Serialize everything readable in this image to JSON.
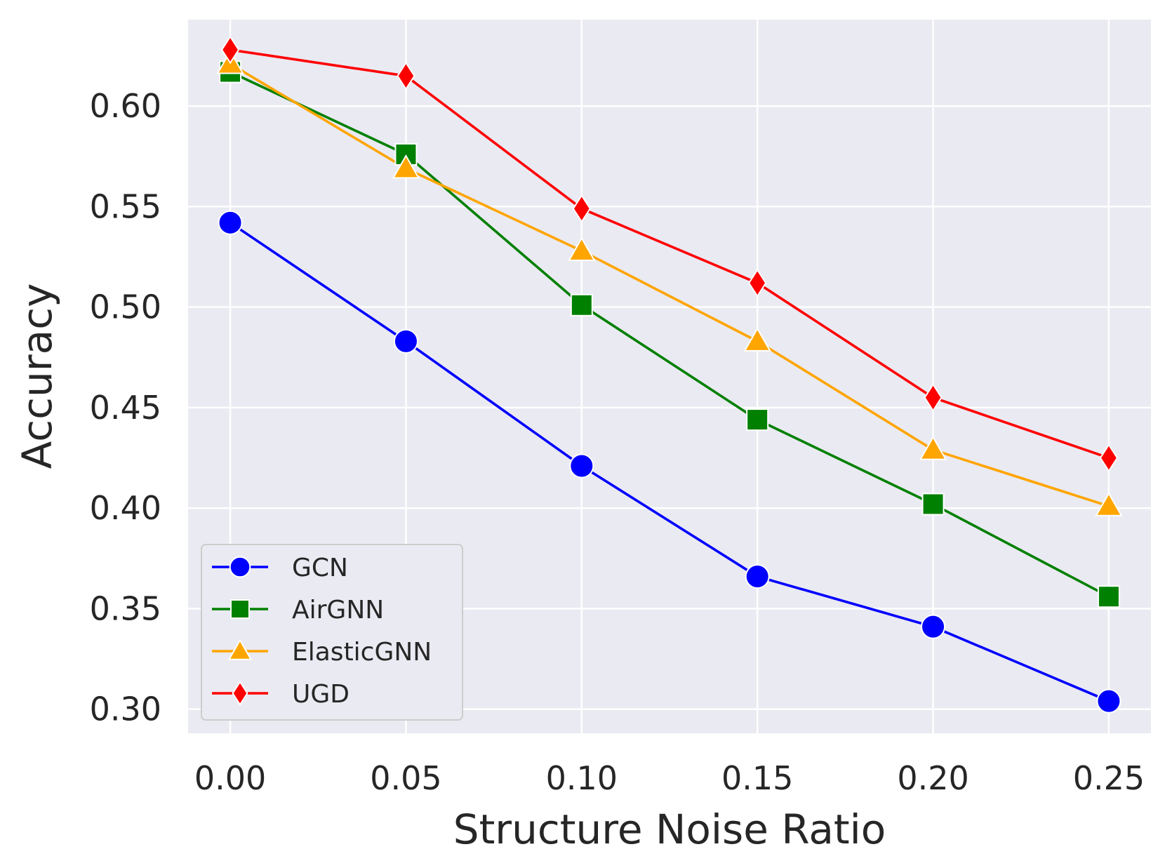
{
  "chart_data": {
    "type": "line",
    "title": "",
    "xlabel": "Structure Noise Ratio",
    "ylabel": "Accuracy",
    "x": [
      0.0,
      0.05,
      0.1,
      0.15,
      0.2,
      0.25
    ],
    "x_tick_labels": [
      "0.00",
      "0.05",
      "0.10",
      "0.15",
      "0.20",
      "0.25"
    ],
    "y_ticks": [
      0.3,
      0.35,
      0.4,
      0.45,
      0.5,
      0.55,
      0.6
    ],
    "y_tick_labels": [
      "0.30",
      "0.35",
      "0.40",
      "0.45",
      "0.50",
      "0.55",
      "0.60"
    ],
    "xlim": [
      -0.012,
      0.262
    ],
    "ylim": [
      0.288,
      0.643
    ],
    "grid": true,
    "legend_position": "bottom-left",
    "series": [
      {
        "name": "GCN",
        "marker": "circle",
        "color": "#0000ff",
        "values": [
          0.542,
          0.483,
          0.421,
          0.366,
          0.341,
          0.304
        ]
      },
      {
        "name": "AirGNN",
        "marker": "square",
        "color": "#008000",
        "values": [
          0.617,
          0.576,
          0.501,
          0.444,
          0.402,
          0.356
        ]
      },
      {
        "name": "ElasticGNN",
        "marker": "triangle",
        "color": "#ffa500",
        "values": [
          0.621,
          0.569,
          0.528,
          0.483,
          0.429,
          0.401
        ]
      },
      {
        "name": "UGD",
        "marker": "diamond",
        "color": "#ff0000",
        "values": [
          0.628,
          0.615,
          0.549,
          0.512,
          0.455,
          0.425
        ]
      }
    ]
  },
  "colors": {
    "plot_background": "#eaeaf2",
    "grid": "#ffffff",
    "text": "#262626"
  }
}
